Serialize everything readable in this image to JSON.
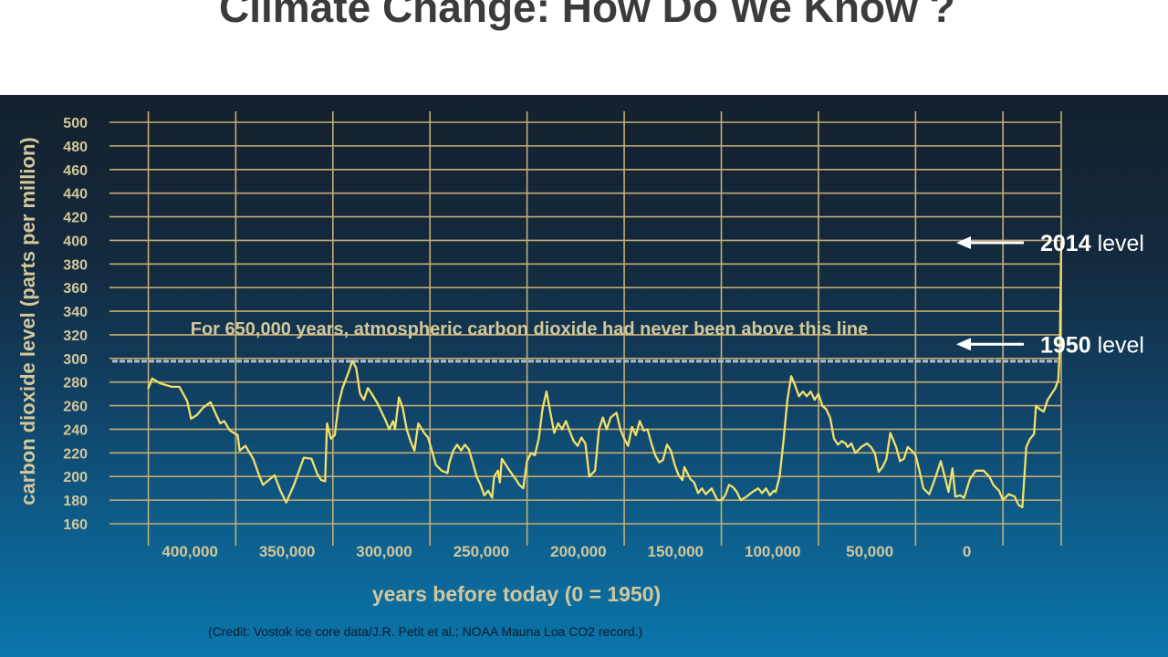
{
  "slide": {
    "title": "Climate Change: How Do We Know ?",
    "credit": "(Credit: Vostok ice core data/J.R. Petit et al.; NOAA Mauna Loa CO2 record.)"
  },
  "colors": {
    "line": "#f4df6a",
    "grid": "#c7ad72",
    "label": "#d3c79a",
    "reference_line": "#aebfcc",
    "arrow": "#ffffff"
  },
  "chart_data": {
    "type": "line",
    "title": "",
    "xlabel": "years before today (0 = 1950)",
    "ylabel": "carbon dioxide level (parts per million)",
    "xlim": [
      440000,
      -50000
    ],
    "ylim": [
      160,
      500
    ],
    "x_ticks": [
      400000,
      350000,
      300000,
      250000,
      200000,
      150000,
      100000,
      50000,
      0
    ],
    "x_tick_labels": [
      "400,000",
      "350,000",
      "300,000",
      "250,000",
      "200,000",
      "150,000",
      "100,000",
      "50,000",
      "0"
    ],
    "y_ticks": [
      160,
      180,
      200,
      220,
      240,
      260,
      280,
      300,
      320,
      340,
      360,
      380,
      400,
      420,
      440,
      460,
      480,
      500
    ],
    "y_tick_labels": [
      "160",
      "180",
      "200",
      "220",
      "240",
      "260",
      "280",
      "300",
      "320",
      "340",
      "360",
      "380",
      "400",
      "420",
      "440",
      "460",
      "480",
      "500"
    ],
    "grid": true,
    "reference_line": {
      "y": 300,
      "label": "For 650,000 years, atmospheric carbon dioxide had never been above this line"
    },
    "annotations": [
      {
        "bold": "2014",
        "text": " level",
        "y": 398
      },
      {
        "bold": "1950",
        "text": " level",
        "y": 312
      }
    ],
    "series": [
      {
        "points": [
          [
            420000,
            275
          ],
          [
            418000,
            283
          ],
          [
            414000,
            279
          ],
          [
            408000,
            276
          ],
          [
            404000,
            276
          ],
          [
            400000,
            264
          ],
          [
            398000,
            249
          ],
          [
            395000,
            252
          ],
          [
            392000,
            258
          ],
          [
            388000,
            263
          ],
          [
            385000,
            252
          ],
          [
            383000,
            245
          ],
          [
            381000,
            247
          ],
          [
            378000,
            239
          ],
          [
            374000,
            235
          ],
          [
            373000,
            222
          ],
          [
            370000,
            226
          ],
          [
            366000,
            215
          ],
          [
            363000,
            201
          ],
          [
            361000,
            193
          ],
          [
            358000,
            197
          ],
          [
            355000,
            201
          ],
          [
            352000,
            188
          ],
          [
            349000,
            178
          ],
          [
            345000,
            193
          ],
          [
            340000,
            216
          ],
          [
            336000,
            215
          ],
          [
            333000,
            202
          ],
          [
            331000,
            197
          ],
          [
            329000,
            196
          ],
          [
            328000,
            245
          ],
          [
            326000,
            232
          ],
          [
            324000,
            235
          ],
          [
            322000,
            262
          ],
          [
            320000,
            275
          ],
          [
            317000,
            288
          ],
          [
            315000,
            298
          ],
          [
            313000,
            292
          ],
          [
            311000,
            270
          ],
          [
            309000,
            265
          ],
          [
            307000,
            275
          ],
          [
            305000,
            270
          ],
          [
            302000,
            262
          ],
          [
            300000,
            255
          ],
          [
            298000,
            248
          ],
          [
            296000,
            240
          ],
          [
            294000,
            247
          ],
          [
            293000,
            240
          ],
          [
            291000,
            267
          ],
          [
            289000,
            258
          ],
          [
            287000,
            240
          ],
          [
            285000,
            230
          ],
          [
            283000,
            222
          ],
          [
            281000,
            245
          ],
          [
            278000,
            237
          ],
          [
            276000,
            233
          ],
          [
            274000,
            222
          ],
          [
            272000,
            210
          ],
          [
            269000,
            205
          ],
          [
            266000,
            203
          ],
          [
            265000,
            212
          ],
          [
            263000,
            222
          ],
          [
            261000,
            227
          ],
          [
            259000,
            222
          ],
          [
            257000,
            227
          ],
          [
            255000,
            223
          ],
          [
            253000,
            212
          ],
          [
            251000,
            200
          ],
          [
            249000,
            193
          ],
          [
            247000,
            184
          ],
          [
            245000,
            188
          ],
          [
            243000,
            182
          ],
          [
            242000,
            200
          ],
          [
            240000,
            205
          ],
          [
            239000,
            195
          ],
          [
            238000,
            215
          ],
          [
            236000,
            210
          ],
          [
            234000,
            205
          ],
          [
            231000,
            198
          ],
          [
            229000,
            193
          ],
          [
            227000,
            190
          ],
          [
            225000,
            213
          ],
          [
            223000,
            220
          ],
          [
            221000,
            218
          ],
          [
            219000,
            232
          ],
          [
            217000,
            258
          ],
          [
            215000,
            272
          ],
          [
            213000,
            254
          ],
          [
            211000,
            237
          ],
          [
            209000,
            245
          ],
          [
            207000,
            240
          ],
          [
            205000,
            247
          ],
          [
            203000,
            238
          ],
          [
            201000,
            230
          ],
          [
            199000,
            226
          ],
          [
            197000,
            233
          ],
          [
            195000,
            228
          ],
          [
            193000,
            200
          ],
          [
            190000,
            205
          ],
          [
            188000,
            240
          ],
          [
            186000,
            250
          ],
          [
            184000,
            240
          ],
          [
            182000,
            250
          ],
          [
            179000,
            254
          ],
          [
            177000,
            240
          ],
          [
            175000,
            232
          ],
          [
            173000,
            226
          ],
          [
            171000,
            242
          ],
          [
            169000,
            235
          ],
          [
            167000,
            247
          ],
          [
            165000,
            239
          ],
          [
            163000,
            240
          ],
          [
            161000,
            228
          ],
          [
            159000,
            218
          ],
          [
            157000,
            212
          ],
          [
            155000,
            214
          ],
          [
            153000,
            227
          ],
          [
            151000,
            222
          ],
          [
            149000,
            210
          ],
          [
            147000,
            201
          ],
          [
            145000,
            197
          ],
          [
            144000,
            208
          ],
          [
            141000,
            198
          ],
          [
            139000,
            195
          ],
          [
            137000,
            186
          ],
          [
            135000,
            190
          ],
          [
            133000,
            185
          ],
          [
            130000,
            190
          ],
          [
            127000,
            180
          ],
          [
            125000,
            180
          ],
          [
            123000,
            184
          ],
          [
            121000,
            193
          ],
          [
            119000,
            191
          ],
          [
            117000,
            187
          ],
          [
            115000,
            180
          ],
          [
            112000,
            183
          ],
          [
            109000,
            187
          ],
          [
            106000,
            190
          ],
          [
            104000,
            186
          ],
          [
            102000,
            190
          ],
          [
            100000,
            184
          ],
          [
            98000,
            188
          ],
          [
            97000,
            187
          ],
          [
            95000,
            200
          ],
          [
            93000,
            230
          ],
          [
            91000,
            265
          ],
          [
            89000,
            285
          ],
          [
            87000,
            277
          ],
          [
            85000,
            268
          ],
          [
            83000,
            272
          ],
          [
            81000,
            268
          ],
          [
            79000,
            272
          ],
          [
            77000,
            265
          ],
          [
            75000,
            270
          ],
          [
            73000,
            260
          ],
          [
            71000,
            257
          ],
          [
            69000,
            250
          ],
          [
            67000,
            232
          ],
          [
            65000,
            227
          ],
          [
            63000,
            230
          ],
          [
            61000,
            228
          ],
          [
            60000,
            225
          ],
          [
            58000,
            228
          ],
          [
            56000,
            220
          ],
          [
            53000,
            225
          ],
          [
            50000,
            228
          ],
          [
            48000,
            225
          ],
          [
            46000,
            220
          ],
          [
            44000,
            204
          ],
          [
            42000,
            208
          ],
          [
            40000,
            215
          ],
          [
            38000,
            237
          ],
          [
            35000,
            225
          ],
          [
            33000,
            213
          ],
          [
            31000,
            215
          ],
          [
            29000,
            225
          ],
          [
            27000,
            222
          ],
          [
            25000,
            218
          ],
          [
            23000,
            205
          ],
          [
            21000,
            190
          ],
          [
            18000,
            185
          ],
          [
            15000,
            198
          ],
          [
            12000,
            213
          ],
          [
            10000,
            200
          ],
          [
            8000,
            187
          ],
          [
            6000,
            207
          ],
          [
            4500,
            183
          ],
          [
            2000,
            184
          ],
          [
            0,
            182
          ],
          [
            -3000,
            198
          ],
          [
            -6000,
            205
          ],
          [
            -10000,
            205
          ],
          [
            -13000,
            200
          ],
          [
            -15000,
            193
          ],
          [
            -18000,
            188
          ],
          [
            -20000,
            180
          ],
          [
            -23000,
            185
          ],
          [
            -26000,
            183
          ],
          [
            -28000,
            176
          ],
          [
            -30000,
            174
          ],
          [
            -32000,
            225
          ],
          [
            -34000,
            232
          ],
          [
            -36000,
            236
          ],
          [
            -37000,
            260
          ],
          [
            -39000,
            257
          ],
          [
            -41000,
            255
          ],
          [
            -43000,
            265
          ],
          [
            -45000,
            270
          ],
          [
            -47000,
            275
          ],
          [
            -48500,
            282
          ],
          [
            -49300,
            310
          ],
          [
            -50000,
            398
          ]
        ]
      }
    ]
  }
}
